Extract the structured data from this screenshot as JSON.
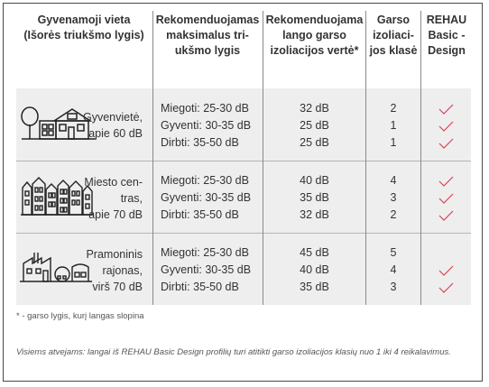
{
  "headers": {
    "location": [
      "Gyvenamoji vieta",
      "(Išorės triukšmo lygis)"
    ],
    "max_level": [
      "Rekomenduojamas",
      "maksimalus tri-",
      "ukšmo lygis"
    ],
    "window_value": [
      "Rekomenduojama",
      "lango garso",
      "izoliacijos vertė*"
    ],
    "class": [
      "Garso",
      "izoliaci-",
      "jos klasė"
    ],
    "rehau": [
      "REHAU",
      "Basic -",
      "Design"
    ]
  },
  "colors": {
    "check": "#d9435a",
    "band": "#eeeeee",
    "text": "#333333"
  },
  "groups": [
    {
      "icon": "house-icon",
      "location": [
        "Gyvenvietė,",
        "apie 60 dB"
      ],
      "rows": [
        {
          "level": "Miegoti: 25-30 dB",
          "value": "32 dB",
          "class": "2",
          "rehau": true
        },
        {
          "level": "Gyventi: 30-35 dB",
          "value": "25 dB",
          "class": "1",
          "rehau": true
        },
        {
          "level": "Dirbti: 35-50 dB",
          "value": "25 dB",
          "class": "1",
          "rehau": true
        }
      ]
    },
    {
      "icon": "city-buildings-icon",
      "location": [
        "Miesto cen-",
        "tras,",
        "apie 70 dB"
      ],
      "rows": [
        {
          "level": "Miegoti: 25-30 dB",
          "value": "40 dB",
          "class": "4",
          "rehau": true
        },
        {
          "level": "Gyventi: 30-35 dB",
          "value": "35 dB",
          "class": "3",
          "rehau": true
        },
        {
          "level": "Dirbti: 35-50 dB",
          "value": "32 dB",
          "class": "2",
          "rehau": true
        }
      ]
    },
    {
      "icon": "factory-icon",
      "location": [
        "Pramoninis",
        "rajonas,",
        "virš 70 dB"
      ],
      "rows": [
        {
          "level": "Miegoti: 25-30 dB",
          "value": "45 dB",
          "class": "5",
          "rehau": false
        },
        {
          "level": "Gyventi: 30-35 dB",
          "value": "40 dB",
          "class": "4",
          "rehau": true
        },
        {
          "level": "Dirbti: 35-50 dB",
          "value": "35 dB",
          "class": "3",
          "rehau": true
        }
      ]
    }
  ],
  "footnote": "* - garso lygis, kurį langas slopina",
  "footer": "Visiems atvejams: langai iš REHAU Basic Design profilių turi atitikti garso izoliacijos klasių nuo 1 iki 4 reikalavimus."
}
